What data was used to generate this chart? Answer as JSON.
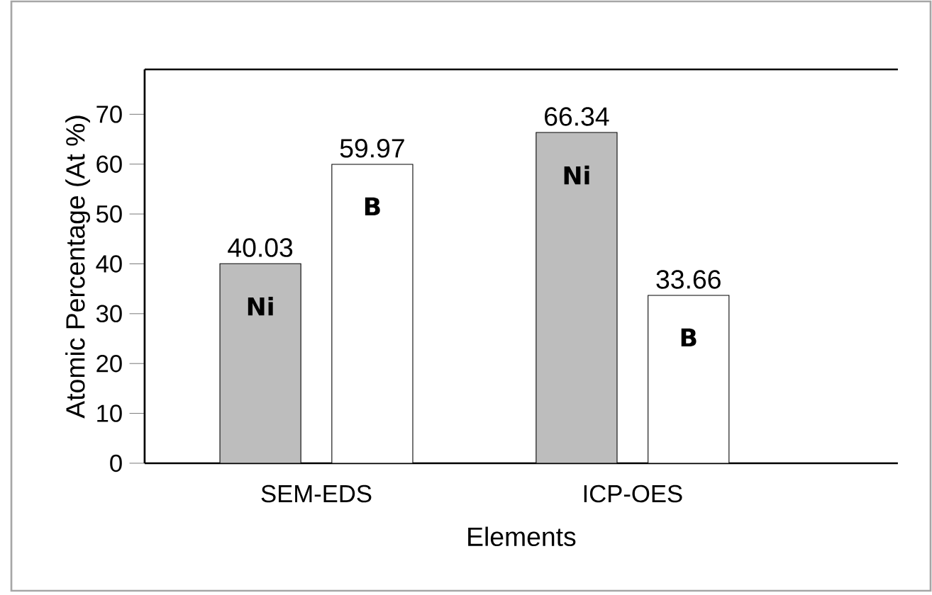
{
  "chart_data": {
    "type": "bar",
    "xlabel": "Elements",
    "ylabel": "Atomic Percentage (At %)",
    "categories": [
      "SEM-EDS",
      "ICP-OES"
    ],
    "series": [
      {
        "name": "Ni",
        "color": "#bdbdbd",
        "values": [
          40.03,
          66.34
        ]
      },
      {
        "name": "B",
        "color": "#ffffff",
        "values": [
          59.97,
          33.66
        ]
      }
    ],
    "ylim": [
      0,
      79
    ],
    "yticks": [
      0,
      10,
      20,
      30,
      40,
      50,
      60,
      70
    ],
    "grid": false,
    "data_labels": true
  }
}
